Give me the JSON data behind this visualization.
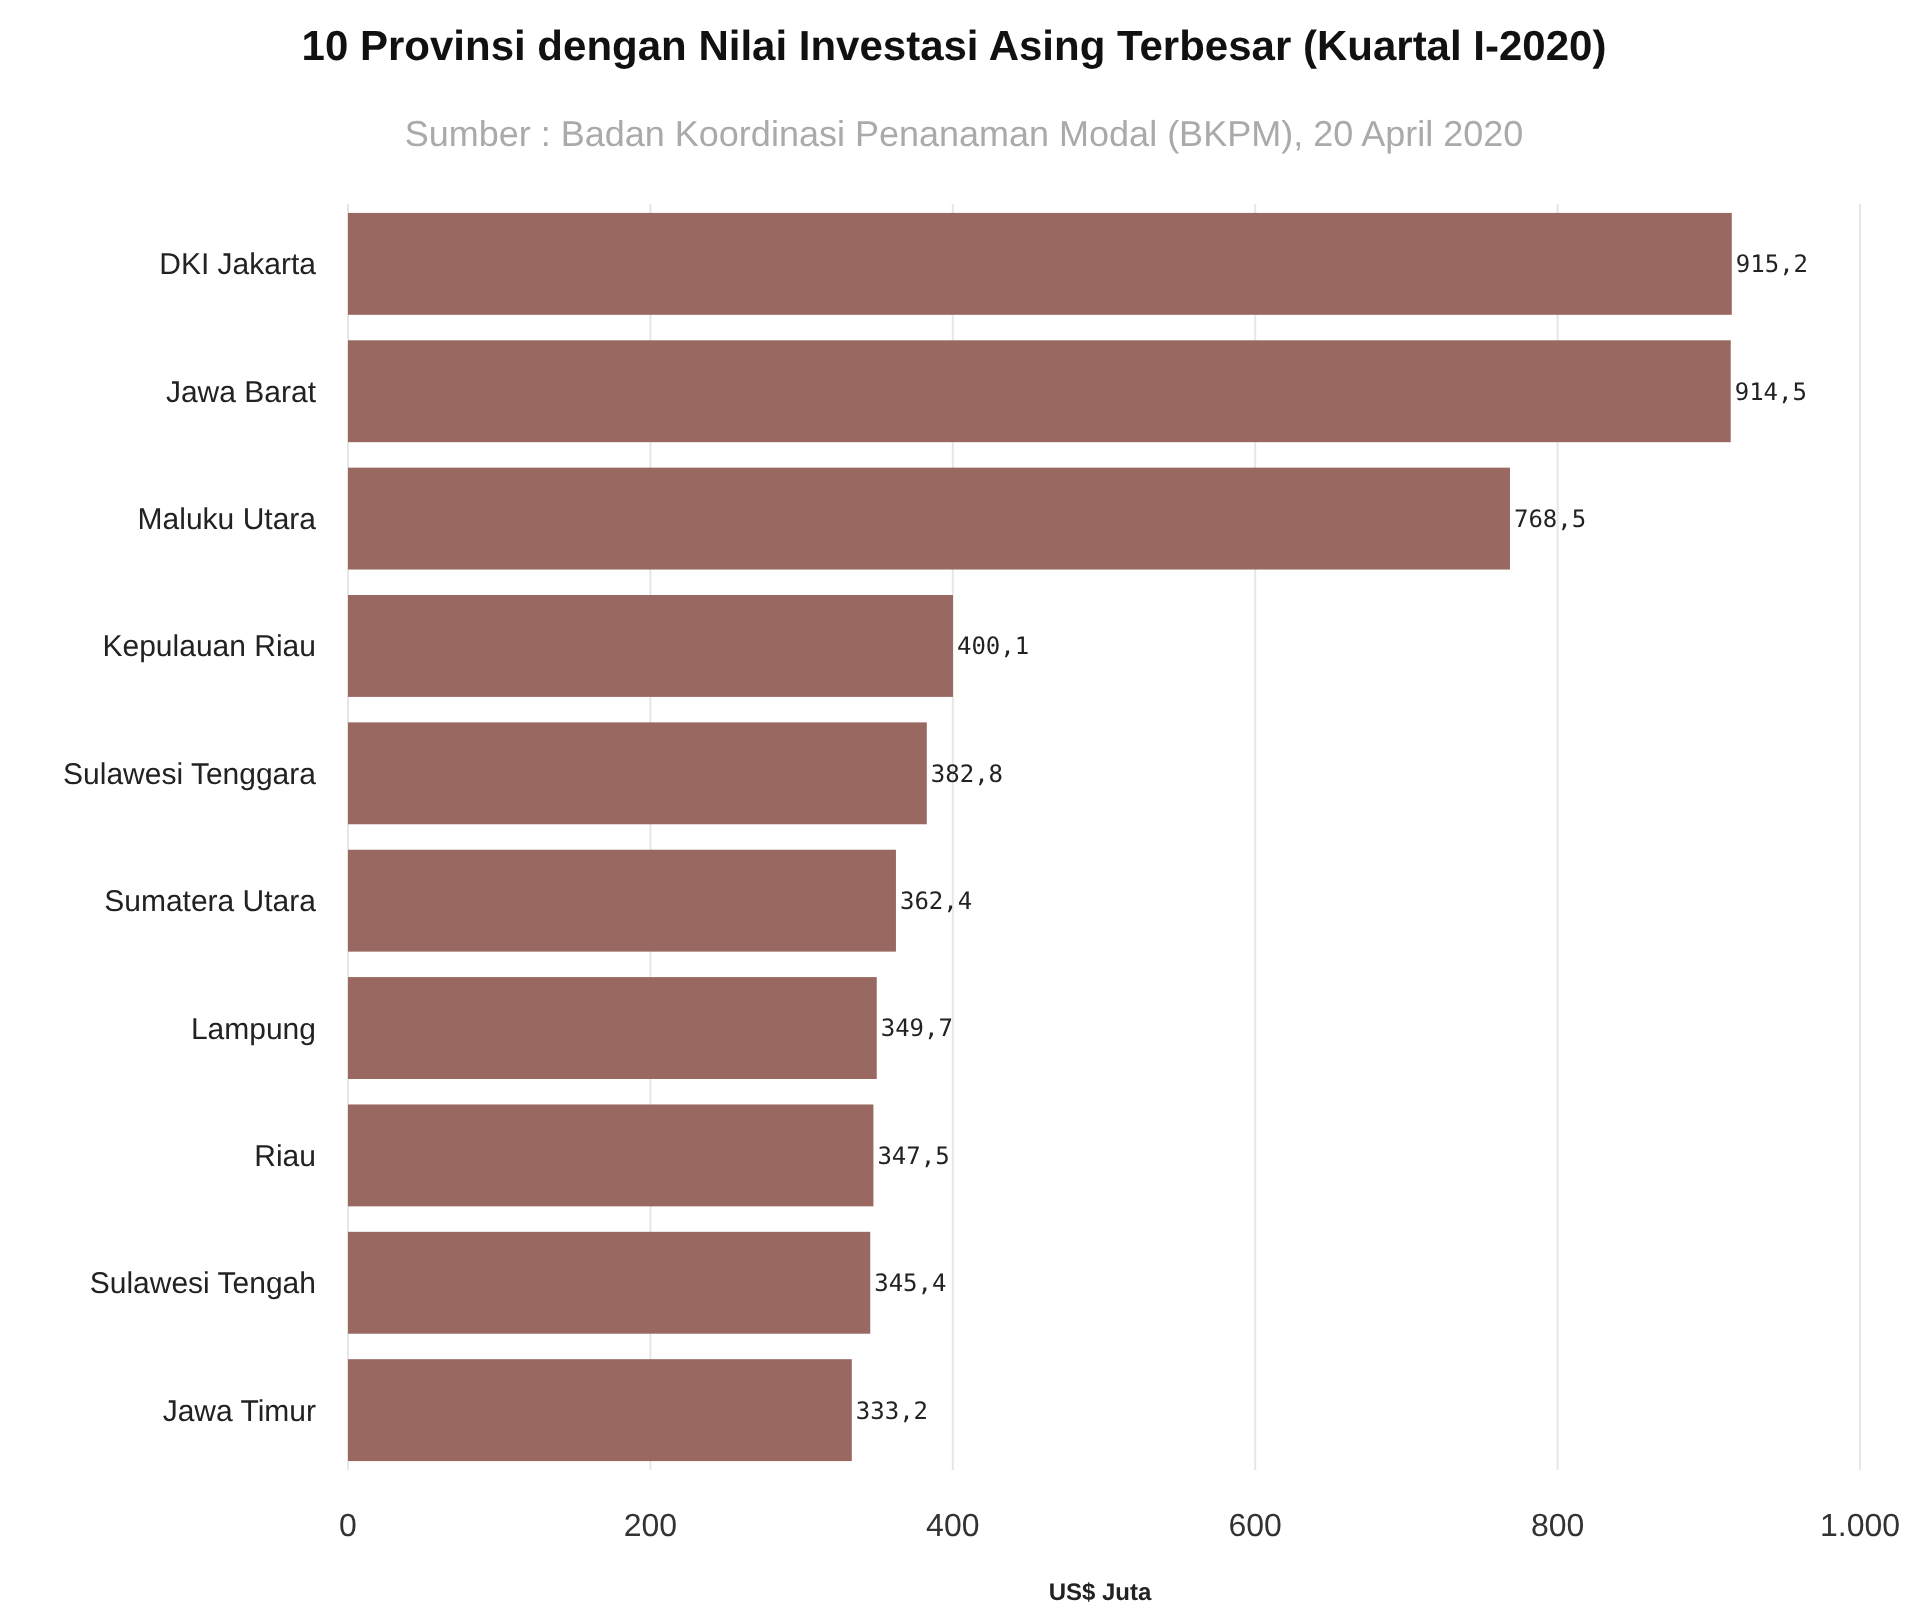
{
  "chart_data": {
    "type": "bar",
    "orientation": "horizontal",
    "title": "10 Provinsi dengan Nilai Investasi Asing Terbesar (Kuartal I-2020)",
    "subtitle": "Sumber : Badan Koordinasi Penanaman Modal (BKPM), 20 April 2020",
    "xlabel": "US$ Juta",
    "categories": [
      "DKI Jakarta",
      "Jawa Barat",
      "Maluku Utara",
      "Kepulauan Riau",
      "Sulawesi Tenggara",
      "Sumatera Utara",
      "Lampung",
      "Riau",
      "Sulawesi Tengah",
      "Jawa Timur"
    ],
    "values": [
      915.2,
      914.5,
      768.5,
      400.1,
      382.8,
      362.4,
      349.7,
      347.5,
      345.4,
      333.2
    ],
    "value_labels": [
      "915,2",
      "914,5",
      "768,5",
      "400,1",
      "382,8",
      "362,4",
      "349,7",
      "347,5",
      "345,4",
      "333,2"
    ],
    "color": "#996860",
    "xlim": [
      0,
      1000
    ],
    "xticks": [
      0,
      200,
      400,
      600,
      800,
      {
        "value": 1000,
        "label": "1.000"
      }
    ],
    "grid": "x"
  }
}
